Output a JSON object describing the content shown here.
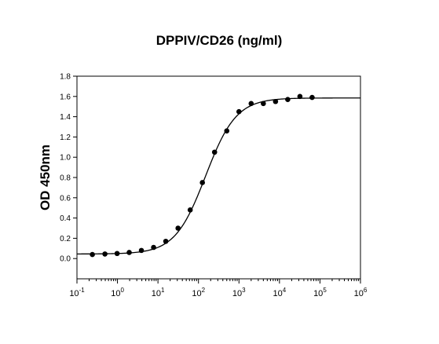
{
  "chart_data": {
    "type": "scatter",
    "title": "DPPIV/CD26 (ng/ml)",
    "xlabel": "",
    "ylabel": "OD 450nm",
    "xscale": "log",
    "xlim": [
      0.1,
      1000000
    ],
    "ylim": [
      -0.2,
      1.8
    ],
    "grid": false,
    "legend": "none",
    "x_ticks": [
      {
        "base": "10",
        "exp": "-1"
      },
      {
        "base": "10",
        "exp": "0"
      },
      {
        "base": "10",
        "exp": "1"
      },
      {
        "base": "10",
        "exp": "2"
      },
      {
        "base": "10",
        "exp": "3"
      },
      {
        "base": "10",
        "exp": "4"
      },
      {
        "base": "10",
        "exp": "5"
      },
      {
        "base": "10",
        "exp": "6"
      }
    ],
    "y_ticks": [
      "0.0",
      "0.2",
      "0.4",
      "0.6",
      "0.8",
      "1.0",
      "1.2",
      "1.4",
      "1.6",
      "1.8"
    ],
    "points": {
      "x": [
        0.24,
        0.49,
        0.98,
        1.95,
        3.9,
        7.8,
        15.6,
        31.3,
        62.5,
        125,
        250,
        500,
        1000,
        2000,
        4000,
        8000,
        16000,
        32000,
        64000
      ],
      "y": [
        0.04,
        0.045,
        0.05,
        0.06,
        0.08,
        0.11,
        0.17,
        0.3,
        0.48,
        0.75,
        1.05,
        1.26,
        1.45,
        1.53,
        1.53,
        1.55,
        1.57,
        1.6,
        1.59
      ]
    },
    "fit_curve": {
      "model": "4PL",
      "bottom": 0.045,
      "top": 1.585,
      "ec50": 150,
      "hill": 1.15
    },
    "colors": {
      "points": "#000000",
      "line": "#000000",
      "axes": "#000000"
    }
  }
}
